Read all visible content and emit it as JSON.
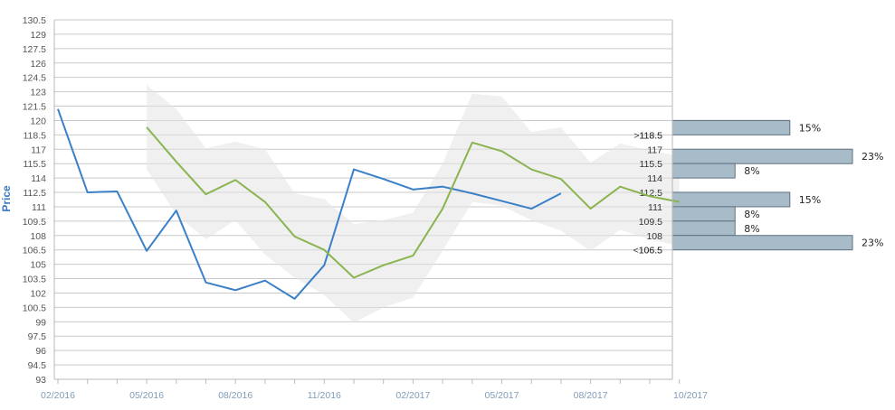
{
  "chart_data": {
    "type": "line",
    "ylabel": "Price",
    "xlabel": "",
    "title": "",
    "ylim": [
      93,
      130.5
    ],
    "y_ticks": [
      "93",
      "94.5",
      "96",
      "97.5",
      "99",
      "100.5",
      "102",
      "103.5",
      "105",
      "106.5",
      "108",
      "109.5",
      "111",
      "112.5",
      "114",
      "115.5",
      "117",
      "118.5",
      "120",
      "121.5",
      "123",
      "124.5",
      "126",
      "127.5",
      "129",
      "130.5"
    ],
    "x_ticks": [
      "02/2016",
      "05/2016",
      "08/2016",
      "11/2016",
      "02/2017",
      "05/2017",
      "08/2017",
      "10/2017"
    ],
    "grid": true,
    "series": [
      {
        "key": "blue",
        "color": "#3a80c8",
        "x": [
          0,
          1,
          2,
          3,
          4,
          5,
          6,
          7,
          8,
          9,
          10,
          11,
          12,
          13,
          14,
          15,
          16,
          17
        ],
        "values": [
          121.2,
          112.5,
          112.6,
          106.4,
          110.6,
          103.1,
          102.3,
          103.3,
          101.4,
          104.9,
          114.9,
          113.9,
          112.8,
          113.1,
          112.4,
          111.6,
          110.8,
          112.4
        ]
      },
      {
        "key": "green",
        "color": "#8ab44f",
        "x": [
          3,
          4,
          5,
          6,
          7,
          8,
          9,
          10,
          11,
          12,
          13,
          14,
          15,
          16,
          17,
          18,
          19,
          20,
          21
        ],
        "values": [
          119.3,
          115.7,
          112.3,
          113.8,
          111.5,
          107.9,
          106.5,
          103.6,
          104.9,
          105.9,
          110.8,
          117.7,
          116.8,
          114.9,
          113.9,
          110.8,
          113.1,
          112.1,
          111.5
        ]
      }
    ],
    "band": {
      "color": "#e4e4e4",
      "x": [
        3,
        4,
        5,
        6,
        7,
        8,
        9,
        10,
        11,
        12,
        13,
        14,
        15,
        16,
        17,
        18,
        19,
        20,
        21
      ],
      "upper": [
        123.7,
        121.2,
        117.1,
        117.8,
        117.0,
        112.4,
        111.8,
        109.2,
        109.6,
        110.4,
        115.5,
        122.8,
        122.5,
        118.8,
        119.3,
        115.6,
        117.6,
        116.9,
        116.3
      ],
      "lower": [
        114.9,
        110.2,
        107.6,
        109.6,
        106.0,
        103.6,
        101.8,
        98.9,
        100.5,
        101.5,
        106.4,
        111.5,
        111.1,
        109.6,
        108.5,
        106.4,
        108.6,
        107.6,
        106.9
      ]
    },
    "distribution": [
      {
        "label": ">118.5",
        "percent": 15,
        "percent_label": "15%"
      },
      {
        "label": "118.5",
        "percent": 0,
        "percent_label": ""
      },
      {
        "label": "117",
        "percent": 0,
        "percent_label": ""
      },
      {
        "label": "115.5",
        "percent": 23,
        "percent_label": "23%"
      },
      {
        "label": "114",
        "percent": 8,
        "percent_label": "8%"
      },
      {
        "label": "112.5",
        "percent": 0,
        "percent_label": ""
      },
      {
        "label": "111",
        "percent": 15,
        "percent_label": "15%"
      },
      {
        "label": "109.5",
        "percent": 8,
        "percent_label": "8%"
      },
      {
        "label": "108",
        "percent": 8,
        "percent_label": "8%"
      },
      {
        "label": "106.5",
        "percent": 23,
        "percent_label": "23%"
      },
      {
        "label": "<106.5",
        "percent": 0,
        "percent_label": ""
      }
    ],
    "distribution_color": "#a7bcc8"
  }
}
